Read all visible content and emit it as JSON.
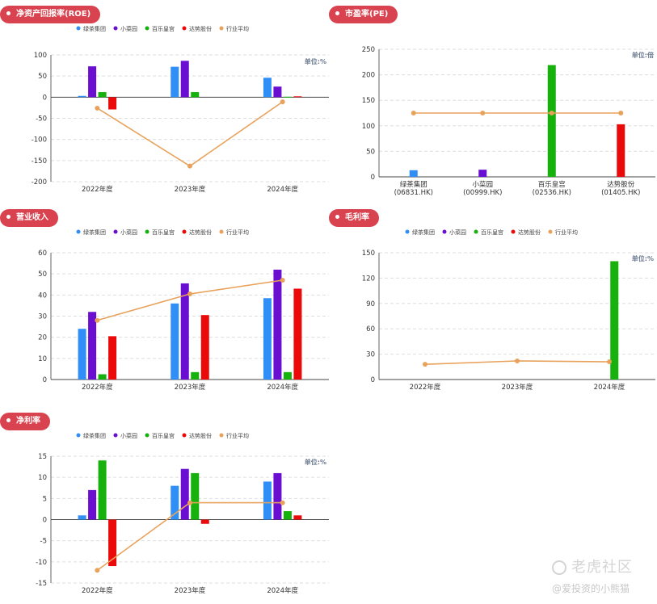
{
  "legend": {
    "items": [
      {
        "label": "绿茶集团",
        "color": "#2f8ff7"
      },
      {
        "label": "小菜园",
        "color": "#6a0fd1"
      },
      {
        "label": "百乐皇宫",
        "color": "#17b10e"
      },
      {
        "label": "达势股份",
        "color": "#ea0a0a"
      },
      {
        "label": "行业平均",
        "color": "#e8a25c"
      }
    ]
  },
  "watermark": {
    "main": "老虎社区",
    "sub": "@爱投资的小熊猫"
  },
  "chart_data": [
    {
      "id": "roe",
      "type": "bar",
      "title": "净资产回报率(ROE)",
      "unit": "单位:%",
      "categories": [
        "2022年度",
        "2023年度",
        "2024年度"
      ],
      "ylim": [
        -200,
        100
      ],
      "yticks": [
        100,
        50,
        0,
        -50,
        -100,
        -150,
        -200
      ],
      "series": [
        {
          "name": "绿茶集团",
          "values": [
            3,
            72,
            46
          ]
        },
        {
          "name": "小菜园",
          "values": [
            73,
            86,
            25
          ]
        },
        {
          "name": "百乐皇宫",
          "values": [
            12,
            12,
            1
          ]
        },
        {
          "name": "达势股份",
          "values": [
            -29,
            0,
            2
          ]
        }
      ],
      "line": {
        "name": "行业平均",
        "values": [
          -26,
          -163,
          -11
        ]
      },
      "show_legend": true
    },
    {
      "id": "pe",
      "type": "bar",
      "title": "市盈率(PE)",
      "unit": "单位:倍",
      "categories": [
        "绿茶集团\n(06831.HK)",
        "小菜园\n(00999.HK)",
        "百乐皇宫\n(02536.HK)",
        "达势股份\n(01405.HK)"
      ],
      "ylim": [
        0,
        250
      ],
      "yticks": [
        250,
        200,
        150,
        100,
        50,
        0
      ],
      "series": [
        {
          "name": "市盈率",
          "values": [
            13,
            14,
            219,
            103
          ],
          "colors": [
            "#2f8ff7",
            "#6a0fd1",
            "#17b10e",
            "#ea0a0a"
          ]
        }
      ],
      "line": {
        "name": "行业平均",
        "values": [
          125,
          125,
          125,
          125
        ]
      },
      "show_legend": false,
      "single_per_category": true
    },
    {
      "id": "revenue",
      "type": "bar",
      "title": "营业收入",
      "unit": "",
      "categories": [
        "2022年度",
        "2023年度",
        "2024年度"
      ],
      "ylim": [
        0,
        60
      ],
      "yticks": [
        60,
        50,
        40,
        30,
        20,
        10,
        0
      ],
      "series": [
        {
          "name": "绿茶集团",
          "values": [
            24,
            36,
            38.5
          ]
        },
        {
          "name": "小菜园",
          "values": [
            32,
            45.5,
            52
          ]
        },
        {
          "name": "百乐皇宫",
          "values": [
            2.5,
            3.5,
            3.5
          ]
        },
        {
          "name": "达势股份",
          "values": [
            20.5,
            30.5,
            43
          ]
        }
      ],
      "line": {
        "name": "行业平均",
        "values": [
          28,
          40.5,
          47
        ]
      },
      "show_legend": true
    },
    {
      "id": "gross",
      "type": "bar",
      "title": "毛利率",
      "unit": "单位:%",
      "categories": [
        "2022年度",
        "2023年度",
        "2024年度"
      ],
      "ylim": [
        0,
        150
      ],
      "yticks": [
        150,
        120,
        90,
        60,
        30,
        0
      ],
      "series": [
        {
          "name": "绿茶集团",
          "values": [
            0,
            0,
            0
          ]
        },
        {
          "name": "小菜园",
          "values": [
            0,
            0,
            0
          ]
        },
        {
          "name": "百乐皇宫",
          "values": [
            0,
            0,
            140
          ]
        },
        {
          "name": "达势股份",
          "values": [
            0,
            0,
            0
          ]
        }
      ],
      "line": {
        "name": "行业平均",
        "values": [
          18,
          22,
          21
        ]
      },
      "show_legend": true
    },
    {
      "id": "net",
      "type": "bar",
      "title": "净利率",
      "unit": "单位:%",
      "categories": [
        "2022年度",
        "2023年度",
        "2024年度"
      ],
      "ylim": [
        -15,
        15
      ],
      "yticks": [
        15,
        10,
        5,
        0,
        -5,
        -10,
        -15
      ],
      "series": [
        {
          "name": "绿茶集团",
          "values": [
            1,
            8,
            9
          ]
        },
        {
          "name": "小菜园",
          "values": [
            7,
            12,
            11
          ]
        },
        {
          "name": "百乐皇宫",
          "values": [
            14,
            11,
            2
          ]
        },
        {
          "name": "达势股份",
          "values": [
            -11,
            -1,
            1
          ]
        }
      ],
      "line": {
        "name": "行业平均",
        "values": [
          -12,
          4,
          4
        ]
      },
      "show_legend": true
    }
  ]
}
